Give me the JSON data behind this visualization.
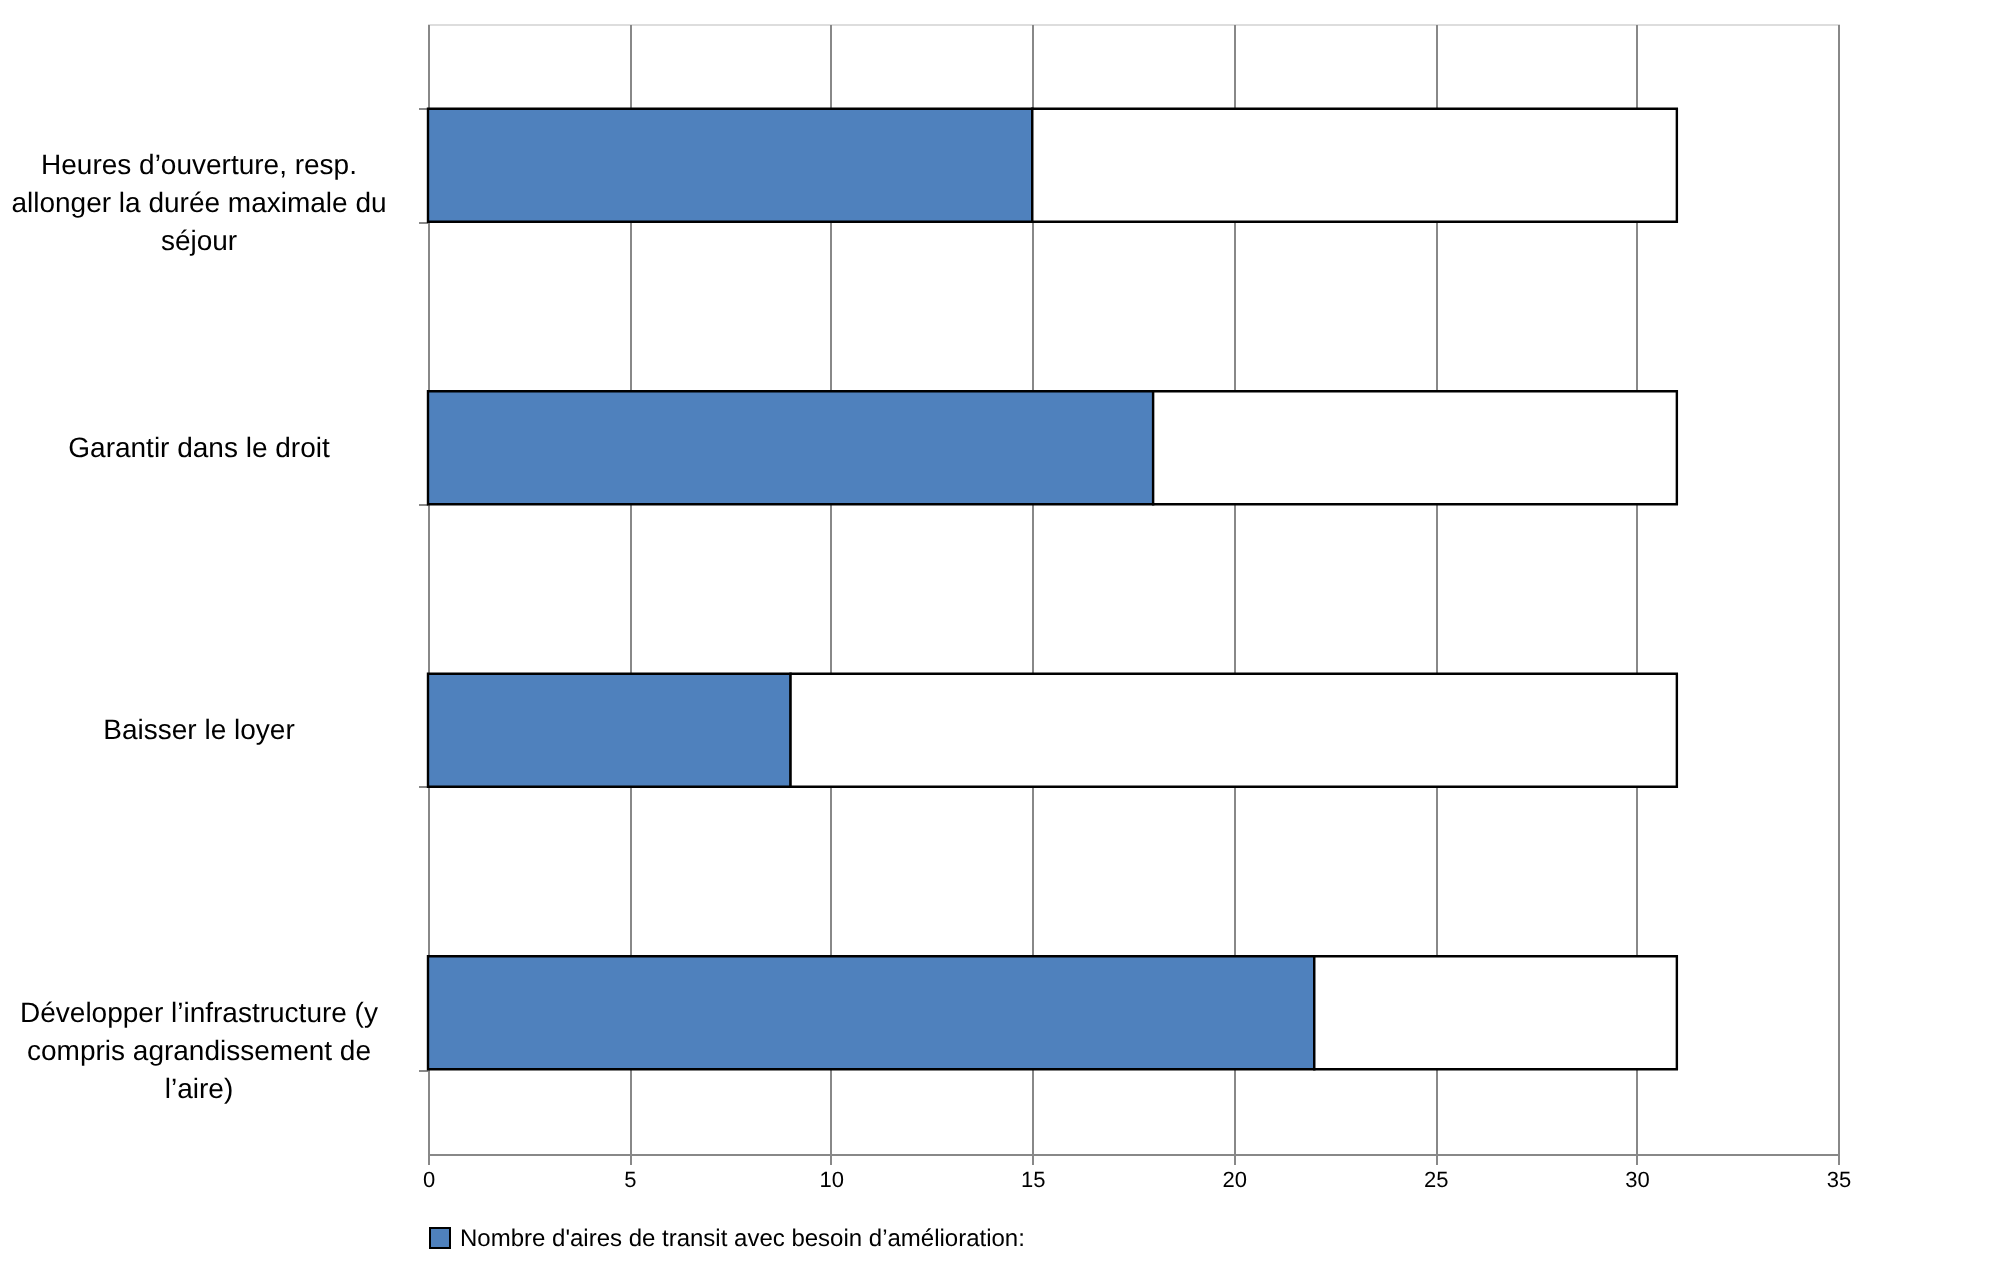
{
  "chart_data": {
    "type": "bar",
    "orientation": "horizontal",
    "stacked": true,
    "categories": [
      "Heures d’ouverture, resp. allonger la durée maximale du séjour",
      "Garantir dans le droit",
      "Baisser le loyer",
      "Développer l’infrastructure (y compris agrandissement de l’aire)"
    ],
    "series": [
      {
        "name": "Nombre d'aires de transit avec besoin d’amélioration:",
        "color": "#4f81bd",
        "values": [
          15,
          18,
          9,
          22
        ]
      },
      {
        "color": "#ffffff",
        "values": [
          16,
          13,
          22,
          9
        ]
      }
    ],
    "xlim": [
      0,
      35
    ],
    "xticks": [
      0,
      5,
      10,
      15,
      20,
      25,
      30,
      35
    ],
    "grid": "x",
    "legend": "bottom"
  }
}
